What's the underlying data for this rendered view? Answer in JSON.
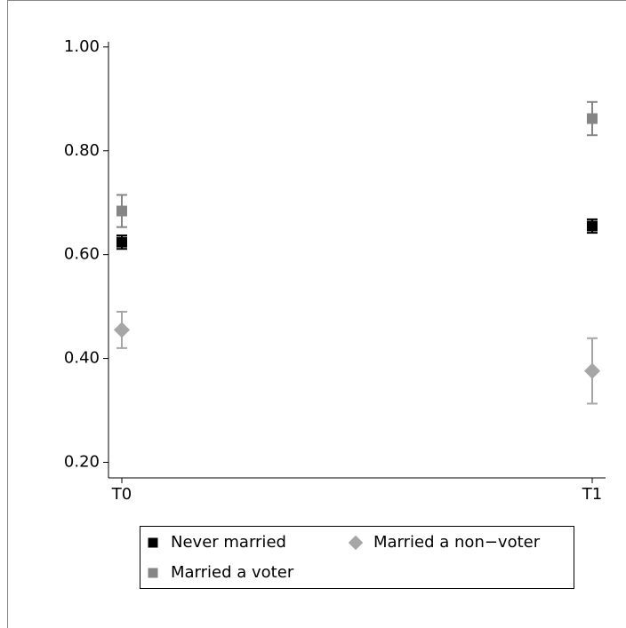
{
  "chart_data": {
    "type": "scatter",
    "categories": [
      "T0",
      "T1"
    ],
    "ylim": [
      0.17,
      1.01
    ],
    "yticks": [
      {
        "value": 0.2,
        "label": "0.20"
      },
      {
        "value": 0.4,
        "label": "0.40"
      },
      {
        "value": 0.6,
        "label": "0.60"
      },
      {
        "value": 0.8,
        "label": "0.80"
      },
      {
        "value": 1.0,
        "label": "1.00"
      }
    ],
    "series": [
      {
        "name": "Never married",
        "color": "#000000",
        "marker": "square",
        "values": [
          0.624,
          0.655
        ],
        "errors": [
          0.013,
          0.013
        ]
      },
      {
        "name": "Married a non−voter",
        "color": "#a6a6a6",
        "marker": "diamond",
        "values": [
          0.455,
          0.376
        ],
        "errors": [
          0.035,
          0.063
        ]
      },
      {
        "name": "Married a voter",
        "color": "#858585",
        "marker": "square",
        "values": [
          0.684,
          0.862
        ],
        "errors": [
          0.031,
          0.032
        ]
      }
    ]
  }
}
